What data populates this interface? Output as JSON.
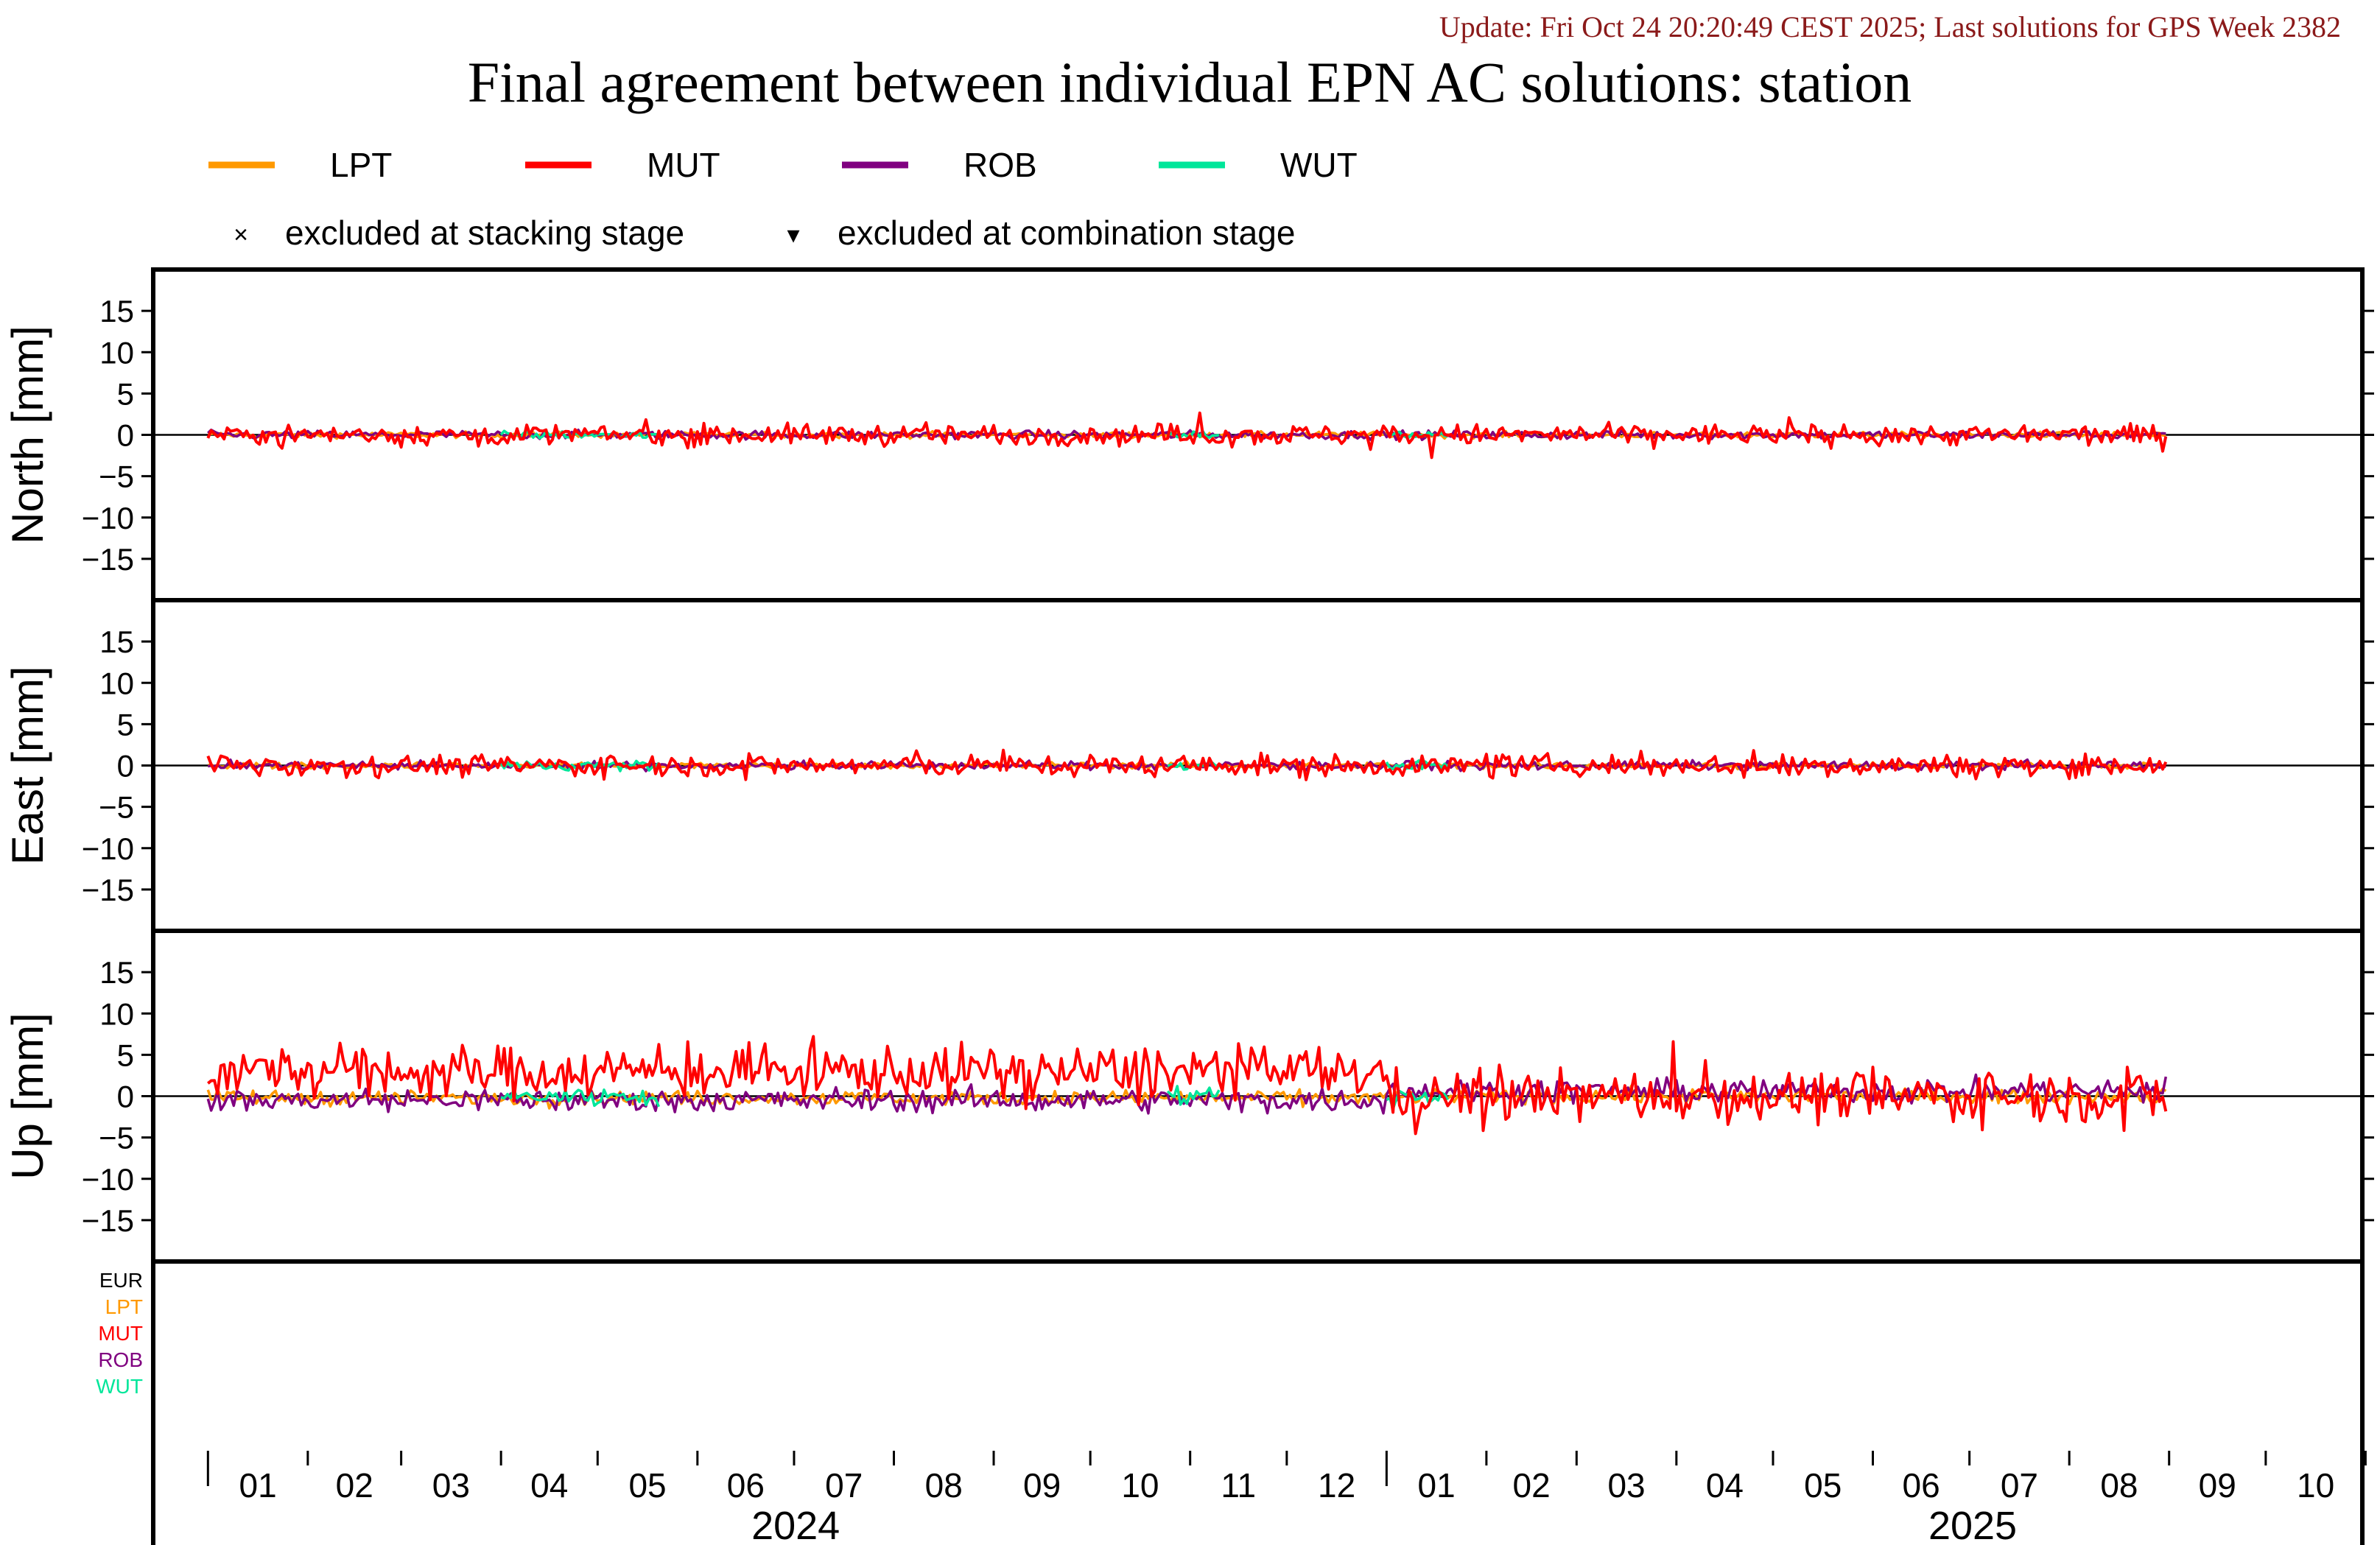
{
  "update_text": "Update: Fri Oct 24 20:20:49 CEST 2025; Last solutions for GPS Week 2382",
  "chart_data": {
    "type": "line",
    "title": "Final agreement between individual EPN AC solutions: station",
    "legend": {
      "placement": "top",
      "series": [
        {
          "name": "LPT",
          "color": "#ff9900"
        },
        {
          "name": "MUT",
          "color": "#ff0000"
        },
        {
          "name": "ROB",
          "color": "#800080"
        },
        {
          "name": "WUT",
          "color": "#00e69a"
        }
      ],
      "markers": [
        {
          "symbol": "×",
          "label": "excluded at stacking stage"
        },
        {
          "symbol": "▾",
          "label": "excluded at combination stage"
        }
      ]
    },
    "xlim": [
      "2023-12-15",
      "2025-10-31"
    ],
    "x_months": [
      "01",
      "02",
      "03",
      "04",
      "05",
      "06",
      "07",
      "08",
      "09",
      "10",
      "11",
      "12",
      "01",
      "02",
      "03",
      "04",
      "05",
      "06",
      "07",
      "08",
      "09",
      "10"
    ],
    "x_years": [
      "2024",
      "2025"
    ],
    "data_range": [
      "2024-01-01",
      "2025-08-31"
    ],
    "panels": [
      {
        "ylabel": "North [mm]",
        "ylim": [
          -20,
          20
        ],
        "yticks": [
          15,
          10,
          5,
          0,
          -5,
          -10,
          -15
        ],
        "amplitude": {
          "MUT": 0.9,
          "ROB": 0.35,
          "LPT": 0.25,
          "WUT": 0.35
        }
      },
      {
        "ylabel": "East [mm]",
        "ylim": [
          -20,
          20
        ],
        "yticks": [
          15,
          10,
          5,
          0,
          -5,
          -10,
          -15
        ],
        "amplitude": {
          "MUT": 0.9,
          "ROB": 0.35,
          "LPT": 0.25,
          "WUT": 0.4
        }
      },
      {
        "ylabel": "Up [mm]",
        "ylim": [
          -20,
          20
        ],
        "yticks": [
          15,
          10,
          5,
          0,
          -5,
          -10,
          -15
        ],
        "amplitude": {
          "MUT": 2.2,
          "ROB": 1.0,
          "LPT": 0.6,
          "WUT": 0.8
        },
        "offset_2024": {
          "MUT": 3.0,
          "ROB": -0.5,
          "LPT": -0.2,
          "WUT": 0.0
        },
        "offset_2025": {
          "MUT": 0.0,
          "ROB": 0.6,
          "LPT": 0.0,
          "WUT": 0.0
        }
      }
    ],
    "wut_periods": [
      [
        "2024-04-01",
        "2024-05-20"
      ],
      [
        "2024-10-25",
        "2024-11-10"
      ],
      [
        "2025-01-01",
        "2025-01-20"
      ]
    ],
    "bottom_panel_labels": [
      {
        "text": "EUR",
        "color": "#000000"
      },
      {
        "text": "LPT",
        "color": "#ff9900"
      },
      {
        "text": "MUT",
        "color": "#ff0000"
      },
      {
        "text": "ROB",
        "color": "#800080"
      },
      {
        "text": "WUT",
        "color": "#00e69a"
      }
    ]
  }
}
